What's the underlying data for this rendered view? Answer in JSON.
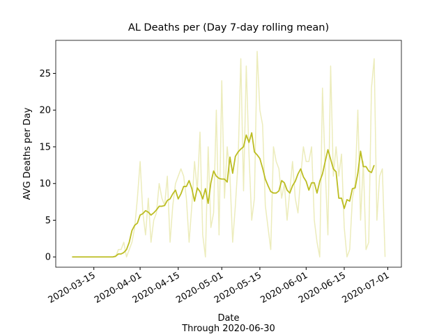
{
  "chart_data": {
    "type": "line",
    "title": "AL Deaths per (Day 7-day rolling mean)",
    "ylabel": "AVG Deaths per Day",
    "xlabel": "Date\nThrough 2020-06-30",
    "x": [
      "2020-03-07",
      "2020-03-08",
      "2020-03-09",
      "2020-03-10",
      "2020-03-11",
      "2020-03-12",
      "2020-03-13",
      "2020-03-14",
      "2020-03-15",
      "2020-03-16",
      "2020-03-17",
      "2020-03-18",
      "2020-03-19",
      "2020-03-20",
      "2020-03-21",
      "2020-03-22",
      "2020-03-23",
      "2020-03-24",
      "2020-03-25",
      "2020-03-26",
      "2020-03-27",
      "2020-03-28",
      "2020-03-29",
      "2020-03-30",
      "2020-03-31",
      "2020-04-01",
      "2020-04-02",
      "2020-04-03",
      "2020-04-04",
      "2020-04-05",
      "2020-04-06",
      "2020-04-07",
      "2020-04-08",
      "2020-04-09",
      "2020-04-10",
      "2020-04-11",
      "2020-04-12",
      "2020-04-13",
      "2020-04-14",
      "2020-04-15",
      "2020-04-16",
      "2020-04-17",
      "2020-04-18",
      "2020-04-19",
      "2020-04-20",
      "2020-04-21",
      "2020-04-22",
      "2020-04-23",
      "2020-04-24",
      "2020-04-25",
      "2020-04-26",
      "2020-04-27",
      "2020-04-28",
      "2020-04-29",
      "2020-04-30",
      "2020-05-01",
      "2020-05-02",
      "2020-05-03",
      "2020-05-04",
      "2020-05-05",
      "2020-05-06",
      "2020-05-07",
      "2020-05-08",
      "2020-05-09",
      "2020-05-10",
      "2020-05-11",
      "2020-05-12",
      "2020-05-13",
      "2020-05-14",
      "2020-05-15",
      "2020-05-16",
      "2020-05-17",
      "2020-05-18",
      "2020-05-19",
      "2020-05-20",
      "2020-05-21",
      "2020-05-22",
      "2020-05-23",
      "2020-05-24",
      "2020-05-25",
      "2020-05-26",
      "2020-05-27",
      "2020-05-28",
      "2020-05-29",
      "2020-05-30",
      "2020-05-31",
      "2020-06-01",
      "2020-06-02",
      "2020-06-03",
      "2020-06-04",
      "2020-06-05",
      "2020-06-06",
      "2020-06-07",
      "2020-06-08",
      "2020-06-09",
      "2020-06-10",
      "2020-06-11",
      "2020-06-12",
      "2020-06-13",
      "2020-06-14",
      "2020-06-15",
      "2020-06-16",
      "2020-06-17",
      "2020-06-18",
      "2020-06-19",
      "2020-06-20",
      "2020-06-21",
      "2020-06-22",
      "2020-06-23",
      "2020-06-24",
      "2020-06-25",
      "2020-06-26",
      "2020-06-27",
      "2020-06-28",
      "2020-06-29",
      "2020-06-30"
    ],
    "series": [
      {
        "color": "#ececbb",
        "values": [
          0,
          0,
          0,
          0,
          0,
          0,
          0,
          0,
          0,
          0,
          0,
          0,
          0,
          0,
          0,
          0,
          0,
          1,
          1,
          2,
          0,
          1,
          2,
          4,
          8,
          13,
          6,
          3,
          8,
          2,
          5,
          6,
          10,
          8,
          7,
          11,
          2,
          7,
          10,
          11,
          12,
          11,
          8,
          2,
          7,
          13,
          9,
          17,
          3,
          0,
          15,
          4,
          6,
          20,
          3,
          24,
          8,
          15,
          11,
          2,
          7,
          13,
          27,
          9,
          26,
          14,
          5,
          8,
          28,
          20,
          18,
          7,
          4,
          1,
          15,
          13,
          12,
          8,
          10,
          5,
          9,
          13,
          8,
          6,
          11,
          15,
          13,
          13,
          15,
          5,
          2,
          0,
          23,
          12,
          3,
          26,
          11,
          15,
          11,
          14,
          4,
          0,
          1,
          8,
          10,
          20,
          5,
          13,
          1,
          2,
          23,
          27,
          5,
          11,
          12,
          0
        ]
      },
      {
        "color": "#bcbd22",
        "values": [
          0,
          0,
          0,
          0,
          0,
          0,
          0,
          0,
          0,
          0,
          0,
          0,
          0,
          0,
          0,
          0,
          0.1,
          0.4,
          0.4,
          0.6,
          1,
          2,
          3.6,
          4.3,
          4.6,
          5.7,
          5.9,
          6.3,
          6.1,
          5.7,
          6,
          6.4,
          6.9,
          6.9,
          7,
          7.7,
          7.9,
          8.6,
          9.1,
          7.9,
          8.6,
          9.6,
          9.6,
          10.4,
          9.3,
          7.6,
          9.4,
          8.9,
          7.9,
          9.3,
          7.3,
          10.1,
          11.7,
          11,
          10.7,
          10.6,
          10.6,
          10.2,
          13.6,
          11.4,
          13.7,
          14.3,
          14.7,
          15,
          16.6,
          15.6,
          16.9,
          14.3,
          13.9,
          13.4,
          12.1,
          10.6,
          9.7,
          8.9,
          8.7,
          8.7,
          9,
          10.4,
          10.1,
          9.1,
          8.7,
          9.7,
          10.3,
          11.3,
          12,
          10.9,
          10.3,
          9.1,
          10.1,
          10.1,
          8.7,
          10.3,
          11.3,
          13,
          14.6,
          13.3,
          12,
          11.6,
          8,
          8,
          6.6,
          7.8,
          7.6,
          9.3,
          9.4,
          11.4,
          14.4,
          12.3,
          12.3,
          11.7,
          11.5,
          12.5,
          null,
          null,
          null,
          null
        ]
      }
    ],
    "xlim": [
      "2020-03-01",
      "2020-07-06"
    ],
    "xticks": [
      "2020-03-15",
      "2020-04-01",
      "2020-04-15",
      "2020-05-01",
      "2020-05-15",
      "2020-06-01",
      "2020-06-15",
      "2020-07-01"
    ],
    "ylim": [
      -1.4,
      29.5
    ],
    "yticks": [
      0,
      5,
      10,
      15,
      20,
      25
    ],
    "grid": false
  }
}
